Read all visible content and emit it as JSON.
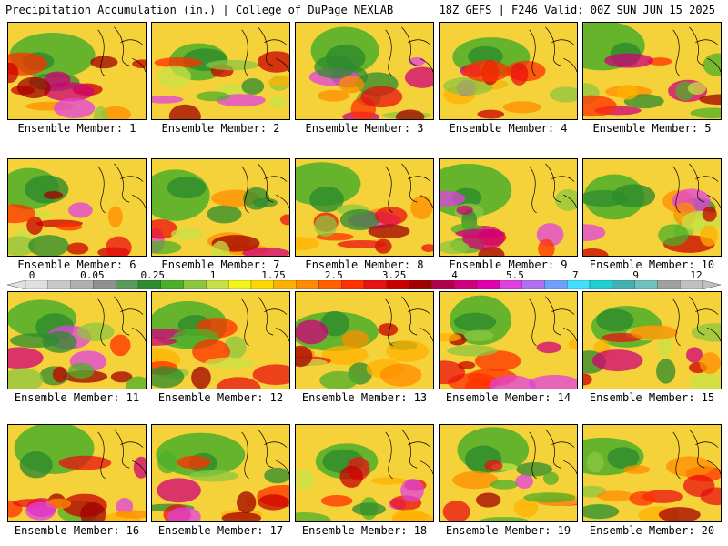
{
  "header": {
    "title_left": "Precipitation Accumulation (in.) | College of DuPage NEXLAB",
    "title_right": "18Z GEFS | F246 Valid: 00Z SUN JUN 15 2025"
  },
  "panels": [
    {
      "label": "Ensemble Member: 1"
    },
    {
      "label": "Ensemble Member: 2"
    },
    {
      "label": "Ensemble Member: 3"
    },
    {
      "label": "Ensemble Member: 4"
    },
    {
      "label": "Ensemble Member: 5"
    },
    {
      "label": "Ensemble Member: 6"
    },
    {
      "label": "Ensemble Member: 7"
    },
    {
      "label": "Ensemble Member: 8"
    },
    {
      "label": "Ensemble Member: 9"
    },
    {
      "label": "Ensemble Member: 10"
    },
    {
      "label": "Ensemble Member: 11"
    },
    {
      "label": "Ensemble Member: 12"
    },
    {
      "label": "Ensemble Member: 13"
    },
    {
      "label": "Ensemble Member: 14"
    },
    {
      "label": "Ensemble Member: 15"
    },
    {
      "label": "Ensemble Member: 16"
    },
    {
      "label": "Ensemble Member: 17"
    },
    {
      "label": "Ensemble Member: 18"
    },
    {
      "label": "Ensemble Member: 19"
    },
    {
      "label": "Ensemble Member: 20"
    }
  ],
  "colorbar": {
    "tick_labels": [
      "0",
      "0.05",
      "0.25",
      "1",
      "1.75",
      "2.5",
      "3.25",
      "4",
      "5.5",
      "7",
      "9",
      "12"
    ],
    "colors": [
      "#e0e0e0",
      "#c8c8c8",
      "#b0b0b0",
      "#909090",
      "#5a9a5a",
      "#2e8b2e",
      "#4caf2a",
      "#8cc63f",
      "#c8e046",
      "#f4f41a",
      "#ffd700",
      "#ffb000",
      "#ff8c00",
      "#ff6000",
      "#ff3000",
      "#e81010",
      "#c80000",
      "#a00000",
      "#b0004a",
      "#d0007a",
      "#e000b0",
      "#e040e0",
      "#b070f0",
      "#70a0ff",
      "#40e0ff",
      "#20d0d0",
      "#40b0b0",
      "#70c0c0",
      "#a0a0a0",
      "#c0c0c0"
    ]
  }
}
